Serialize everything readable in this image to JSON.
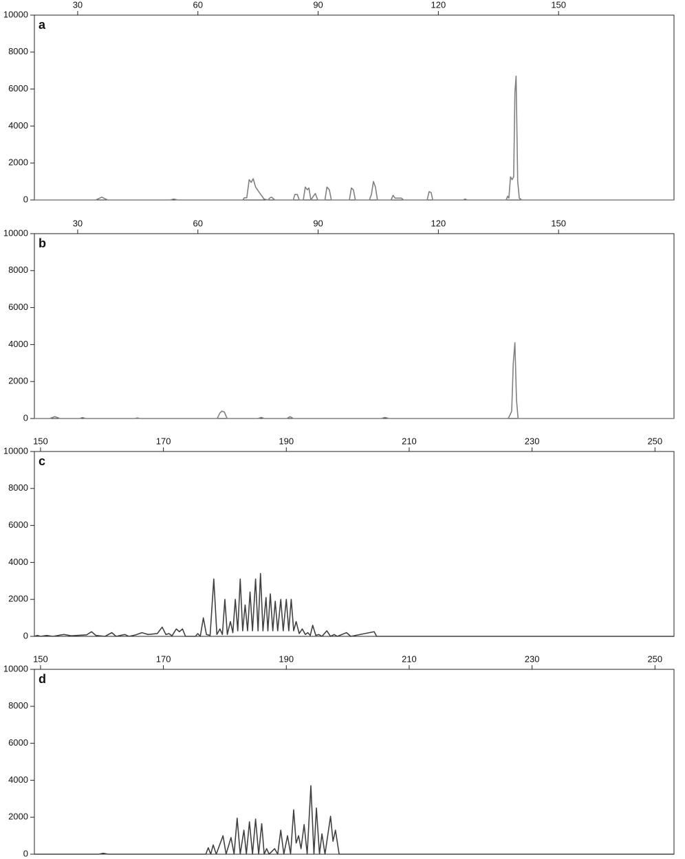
{
  "chart_data": [
    {
      "type": "line",
      "label": "a",
      "color": "#808080",
      "xlim": [
        19.2,
        178.8
      ],
      "xticks": [
        30,
        60,
        90,
        120,
        150
      ],
      "ylim": [
        0,
        10000
      ],
      "yticks": [
        0,
        2000,
        4000,
        6000,
        8000,
        10000
      ],
      "x": [
        19.2,
        34.5,
        36,
        37.5,
        53,
        54,
        55,
        71.2,
        71.6,
        72.2,
        72.8,
        73.3,
        73.8,
        74.4,
        75.5,
        76.5,
        77.5,
        78,
        78.4,
        79.2,
        83.8,
        84.2,
        84.8,
        85.3,
        86.3,
        86.8,
        87.3,
        87.7,
        88.2,
        88.8,
        89.3,
        89.9,
        91.7,
        92.2,
        92.8,
        93.3,
        97.8,
        98.3,
        98.8,
        99.3,
        102.8,
        103.3,
        103.8,
        104.3,
        104.8,
        108.2,
        108.7,
        109.2,
        110.8,
        111.3,
        117.2,
        117.7,
        118.2,
        118.6,
        126.2,
        126.7,
        127.2,
        136.9,
        137.3,
        137.6,
        138,
        138.4,
        138.8,
        139.1,
        139.4,
        139.8,
        140.2,
        140.8,
        178.8
      ],
      "values": [
        0,
        0,
        150,
        0,
        0,
        50,
        0,
        0,
        120,
        120,
        1100,
        950,
        1150,
        700,
        350,
        50,
        0,
        120,
        150,
        0,
        0,
        300,
        300,
        0,
        0,
        700,
        550,
        650,
        0,
        200,
        350,
        0,
        0,
        700,
        550,
        0,
        0,
        650,
        550,
        0,
        0,
        300,
        1000,
        700,
        0,
        0,
        250,
        100,
        100,
        0,
        0,
        450,
        400,
        0,
        0,
        50,
        0,
        0,
        200,
        100,
        1250,
        1100,
        1250,
        5800,
        6700,
        1000,
        100,
        0,
        0
      ]
    },
    {
      "type": "line",
      "label": "b",
      "color": "#808080",
      "xlim": [
        19.2,
        178.8
      ],
      "xticks": [
        30,
        60,
        90,
        120,
        150
      ],
      "ylim": [
        0,
        10000
      ],
      "yticks": [
        0,
        2000,
        4000,
        6000,
        8000,
        10000
      ],
      "x": [
        19.2,
        23,
        24.3,
        25.6,
        30.5,
        31.2,
        32,
        44.2,
        44.9,
        45.6,
        64.8,
        65.5,
        66,
        66.6,
        67.3,
        75,
        75.8,
        76.6,
        82.2,
        83,
        83.8,
        105.7,
        106.7,
        107.7,
        137.4,
        137.9,
        138.3,
        138.7,
        139.1,
        139.5,
        139.9,
        178.8
      ],
      "values": [
        0,
        0,
        100,
        0,
        0,
        50,
        0,
        0,
        30,
        0,
        0,
        300,
        400,
        350,
        0,
        0,
        60,
        0,
        0,
        100,
        0,
        0,
        60,
        0,
        0,
        200,
        400,
        3000,
        4100,
        1000,
        0,
        0
      ]
    },
    {
      "type": "line",
      "label": "c",
      "color": "#404040",
      "xlim": [
        149,
        253.1
      ],
      "xticks": [
        150,
        170,
        190,
        210,
        230,
        250
      ],
      "ylim": [
        0,
        10000
      ],
      "yticks": [
        0,
        2000,
        4000,
        6000,
        8000,
        10000
      ],
      "x": [
        149,
        149.5,
        150,
        151,
        152,
        153.8,
        155,
        157.5,
        158.3,
        159,
        160.5,
        161.6,
        162.3,
        163.7,
        164.4,
        165.5,
        166.5,
        167.5,
        169,
        169.8,
        170.4,
        170.9,
        171.4,
        172.1,
        172.6,
        173.1,
        173.6,
        175.2,
        175.6,
        176,
        176.5,
        177,
        177.6,
        178.2,
        178.7,
        179.2,
        179.6,
        180,
        180.4,
        180.9,
        181.3,
        181.7,
        182.1,
        182.5,
        182.9,
        183.3,
        183.7,
        184.1,
        184.5,
        185,
        185.4,
        185.8,
        186.2,
        186.7,
        187,
        187.4,
        187.8,
        188.2,
        188.6,
        189.1,
        189.5,
        190,
        190.4,
        190.8,
        191.2,
        191.6,
        192.1,
        192.6,
        193.1,
        193.5,
        193.9,
        194.3,
        194.8,
        195.3,
        195.8,
        196.6,
        197.2,
        197.8,
        198.3,
        199.8,
        200.5,
        204.3,
        204.7,
        253.1
      ],
      "values": [
        0,
        50,
        0,
        50,
        0,
        100,
        30,
        80,
        250,
        50,
        0,
        200,
        0,
        100,
        0,
        80,
        200,
        100,
        150,
        500,
        100,
        150,
        30,
        400,
        250,
        400,
        0,
        0,
        150,
        0,
        1000,
        100,
        50,
        3100,
        100,
        400,
        100,
        2000,
        100,
        800,
        200,
        2000,
        300,
        3100,
        300,
        1700,
        300,
        2400,
        300,
        3100,
        300,
        3400,
        300,
        2100,
        300,
        2300,
        300,
        1900,
        300,
        2000,
        300,
        2000,
        300,
        2000,
        300,
        800,
        150,
        400,
        100,
        200,
        50,
        600,
        50,
        100,
        0,
        300,
        0,
        100,
        0,
        200,
        0,
        250,
        0,
        0
      ]
    },
    {
      "type": "line",
      "label": "d",
      "color": "#404040",
      "xlim": [
        149,
        253.1
      ],
      "xticks": [
        150,
        170,
        190,
        210,
        230,
        250
      ],
      "ylim": [
        0,
        10000
      ],
      "yticks": [
        0,
        2000,
        4000,
        6000,
        8000,
        10000
      ],
      "x": [
        149,
        159.5,
        160.2,
        161,
        176.9,
        177.3,
        177.7,
        178.1,
        178.6,
        179.7,
        180.2,
        181,
        181.5,
        182,
        182.5,
        183.1,
        183.5,
        184,
        184.5,
        185,
        185.5,
        186,
        186.4,
        186.8,
        187.2,
        188.1,
        188.6,
        189.1,
        189.6,
        190.2,
        190.7,
        191.2,
        191.6,
        192,
        192.4,
        192.9,
        193.4,
        194,
        194.5,
        194.9,
        195.4,
        195.8,
        196.3,
        197.2,
        197.6,
        198,
        198.6,
        253.1
      ],
      "values": [
        0,
        0,
        50,
        0,
        0,
        350,
        0,
        500,
        0,
        1000,
        0,
        900,
        0,
        1950,
        0,
        1300,
        0,
        1750,
        0,
        1900,
        0,
        1650,
        0,
        300,
        0,
        300,
        0,
        1300,
        0,
        1000,
        0,
        2400,
        600,
        1000,
        300,
        1600,
        0,
        3700,
        0,
        2500,
        0,
        1100,
        0,
        2050,
        700,
        1300,
        0,
        0
      ]
    }
  ]
}
